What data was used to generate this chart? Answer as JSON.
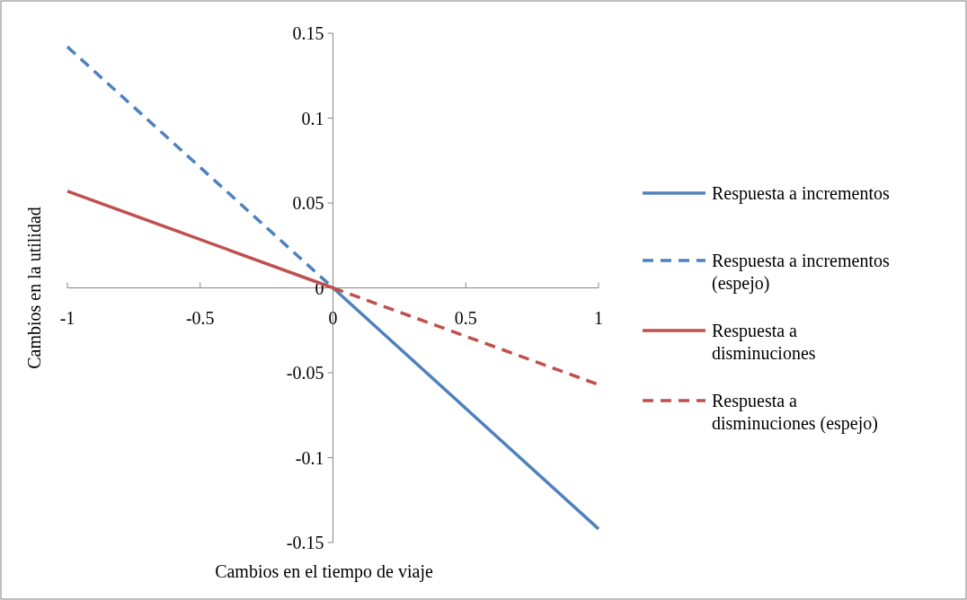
{
  "chart_data": {
    "type": "line",
    "xlabel": "Cambios en el tiempo de viaje",
    "ylabel": "Cambios en la utilidad",
    "xlim": [
      -1,
      1
    ],
    "ylim": [
      -0.15,
      0.15
    ],
    "xticks": [
      -1,
      -0.5,
      0,
      0.5,
      1
    ],
    "yticks": [
      -0.15,
      -0.1,
      -0.05,
      0,
      0.05,
      0.1,
      0.15
    ],
    "legend": "right",
    "marker": "none",
    "series": [
      {
        "name": "Respuesta a incrementos",
        "color": "#4f81bd",
        "line_style": "solid",
        "x": [
          0,
          1
        ],
        "values": [
          0,
          -0.142
        ]
      },
      {
        "name": "Respuesta a incrementos (espejo)",
        "color": "#4f81bd",
        "line_style": "dashed",
        "x": [
          -1,
          0
        ],
        "values": [
          0.142,
          0
        ]
      },
      {
        "name": "Respuesta a disminuciones",
        "color": "#c0504d",
        "line_style": "solid",
        "x": [
          -1,
          0
        ],
        "values": [
          0.057,
          0
        ]
      },
      {
        "name": "Respuesta a disminuciones (espejo)",
        "color": "#c0504d",
        "line_style": "dashed",
        "x": [
          0,
          1
        ],
        "values": [
          0,
          -0.057
        ]
      }
    ]
  }
}
